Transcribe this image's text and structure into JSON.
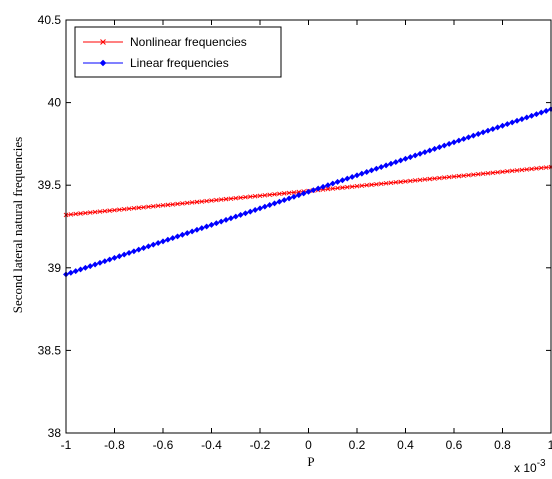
{
  "chart_data": {
    "type": "line",
    "title": "",
    "xlabel": "P",
    "ylabel": "Second lateral natural frequencies",
    "x_exponent_label": "x 10",
    "x_exponent_power": "-3",
    "xlim": [
      -1,
      1
    ],
    "ylim": [
      38,
      40.5
    ],
    "xticks": [
      -1,
      -0.8,
      -0.6,
      -0.4,
      -0.2,
      0,
      0.2,
      0.4,
      0.6,
      0.8,
      1
    ],
    "xtick_labels": [
      "-1",
      "-0.8",
      "-0.6",
      "-0.4",
      "-0.2",
      "0",
      "0.2",
      "0.4",
      "0.6",
      "0.8",
      "1"
    ],
    "yticks": [
      38,
      38.5,
      39,
      39.5,
      40,
      40.5
    ],
    "ytick_labels": [
      "38",
      "38.5",
      "39",
      "39.5",
      "40",
      "40.5"
    ],
    "grid": false,
    "legend_position": "top-left",
    "series": [
      {
        "name": "Nonlinear frequencies",
        "color": "#ff0000",
        "marker": "x",
        "x_start": -1,
        "x_end": 1,
        "num_points": 101,
        "y_start": 39.32,
        "y_end": 39.61
      },
      {
        "name": "Linear frequencies",
        "color": "#0000ff",
        "marker": "diamond",
        "x_start": -1,
        "x_end": 1,
        "num_points": 101,
        "y_start": 38.96,
        "y_end": 39.96
      }
    ]
  }
}
